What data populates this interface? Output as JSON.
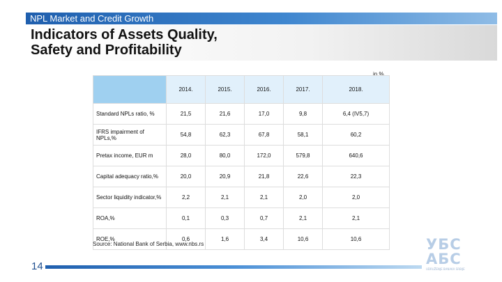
{
  "header": {
    "section": "NPL Market and Credit Growth",
    "title_lines": [
      "Indicators of Assets Quality,",
      "Safety and Profitability"
    ]
  },
  "table": {
    "unit_note": "in %",
    "columns": [
      "2014.",
      "2015.",
      "2016.",
      "2017.",
      "2018."
    ],
    "rows": [
      {
        "label": "Standard NPLs ratio, %",
        "values": [
          "21,5",
          "21,6",
          "17,0",
          "9,8",
          "6,4 (IV5,7)"
        ]
      },
      {
        "label": "IFRS impairment of NPLs,%",
        "values": [
          "54,8",
          "62,3",
          "67,8",
          "58,1",
          "60,2"
        ]
      },
      {
        "label": "Pretax income, EUR m",
        "values": [
          "28,0",
          "80,0",
          "172,0",
          "579,8",
          "640,6"
        ]
      },
      {
        "label": "Capital adequacy ratio,%",
        "values": [
          "20,0",
          "20,9",
          "21,8",
          "22,6",
          "22,3"
        ]
      },
      {
        "label": "Sector liquidity indicator,%",
        "values": [
          "2,2",
          "2,1",
          "2,1",
          "2,0",
          "2,0"
        ]
      },
      {
        "label": "ROA,%",
        "values": [
          "0,1",
          "0,3",
          "0,7",
          "2,1",
          "2,1"
        ]
      },
      {
        "label": "ROE,%",
        "values": [
          "0,6",
          "1,6",
          "3,4",
          "10,6",
          "10,6"
        ]
      }
    ]
  },
  "source": "Source: National Bank of Serbia, www.nbs.rs",
  "footer": {
    "page_number": "14",
    "logo_lines": [
      "УБС",
      "АБС"
    ],
    "logo_subtitle": "UDRUŽENJE BANAKA SRBIJE"
  },
  "colors": {
    "accent": "#1f5fae",
    "header_cell": "#e1f0fb",
    "corner_cell": "#9fd0f0",
    "logo": "#b7cde6"
  }
}
